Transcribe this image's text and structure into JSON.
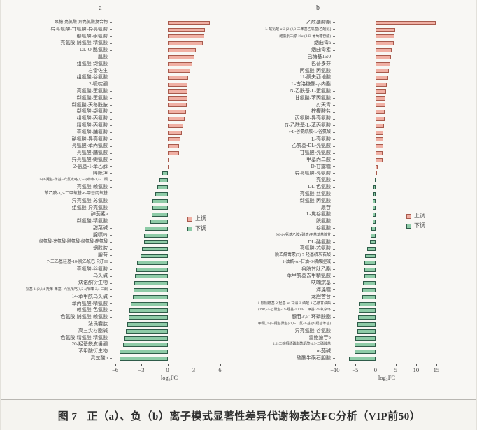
{
  "page": {
    "caption_label": "图 7",
    "caption_title": "正（a）、负（b）离子模式显著性差异代谢物表达FC分析（VIP前50）"
  },
  "legend": {
    "up": "上调",
    "down": "下调"
  },
  "colors": {
    "up_fill": "#f0b0a4",
    "up_border": "#a85a4c",
    "down_fill": "#8ecba7",
    "down_border": "#2f5c49",
    "axis": "#555555"
  },
  "chart_data": [
    {
      "type": "bar",
      "orientation": "horizontal",
      "panel_label": "a",
      "title": "",
      "xlabel": "log₂FC",
      "xlim": [
        -6.6,
        7.0
      ],
      "xticks": [
        -6,
        -3,
        0,
        3,
        6
      ],
      "grid": false,
      "legend": [
        "上调",
        "下调"
      ],
      "legend_position": "right-middle",
      "categories": [
        "果糖-亮氨酸-异亮氨酸复合物",
        "异亮氨酸-甘氨酸-异亮氨酸",
        "缬氨酸-组氨酸",
        "亮氨酸-脯氨酸-精氨酸",
        "DL-O-酪氨酸",
        "肌酸",
        "组氨酸-缬氨酸",
        "右雷佐生",
        "组氨酸-谷氨酸",
        "2-哌啶酮",
        "亮氨酸-蛋氨酸",
        "缬氨酸-蛋氨酸",
        "缬氨酸-天冬酰胺",
        "缬氨酸-缬氨酸",
        "组氨酸-丙氨酸",
        "精氨酸-丙氨酸",
        "亮氨酸-脯氨酸",
        "酪氨酸-异亮氨酸",
        "亮氨酸-苯丙氨酸",
        "亮氨酸-脯氨酸",
        "异亮氨酸-缬氨酸",
        "2-氨基-1-苯乙醇",
        "唑吡坦",
        "3-(4-羟基-苄基)-六氢吡咯(1,2-a)吡嗪-1,4-二酮",
        "亮氨酸-赖氨酸",
        "苯乙胺-3,5-二甲氧基-α-甲基丙氧基",
        "异亮氨酸-苏氨酸",
        "组氨酸-异亮氨酸",
        "醉茄素a",
        "缬氨酸-精氨酸",
        "甜菜碱",
        "腺嘌呤",
        "缬氨酸-亮氨酸-脯氨酸-缬氨酸-酪氨酸",
        "烟酰胺",
        "腺苷",
        "7-三乙基硅基-10-脱乙酰巴卡汀III",
        "亮氨酸-谷氨酸",
        "乌头碱",
        "炔诺酮衍生物",
        "氨基-1-(2,3,4-羟苯-苯基)-六氢吡咯(1,2-a)吡嗪-2,4-二酮",
        "14-苯甲酰乌头碱",
        "苯丙氨酸-精氨酸",
        "赖氨酸-色氨酸",
        "色氨酸-脯氨酸-赖氨酸",
        "法氏囊肽",
        "高三尖杉酯碱",
        "色氨酸-精氨酸-精氨酸",
        "20-羟基蜕皮甾酮",
        "苯甲酸衍生物",
        "灵芝酸h"
      ],
      "values": [
        4.8,
        4.25,
        4.2,
        4.0,
        3.2,
        3.1,
        2.8,
        2.6,
        2.35,
        2.3,
        2.3,
        2.25,
        2.2,
        2.1,
        1.95,
        1.8,
        1.6,
        1.5,
        1.35,
        1.3,
        0.15,
        0.1,
        -0.6,
        -0.95,
        -1.2,
        -1.4,
        -1.7,
        -1.75,
        -1.8,
        -2.0,
        -2.6,
        -2.65,
        -2.7,
        -2.9,
        -3.1,
        -3.5,
        -3.6,
        -3.7,
        -3.8,
        -3.9,
        -4.0,
        -4.2,
        -4.35,
        -4.45,
        -4.6,
        -4.75,
        -4.9,
        -5.1,
        -5.45,
        -5.5
      ]
    },
    {
      "type": "bar",
      "orientation": "horizontal",
      "panel_label": "b",
      "title": "",
      "xlabel": "log₂FC",
      "xlim": [
        -10.5,
        16.0
      ],
      "xticks": [
        -10,
        -5,
        0,
        5,
        10,
        15
      ],
      "grid": false,
      "legend": [
        "上调",
        "下调"
      ],
      "legend_position": "right-middle",
      "categories": [
        "乙酰磷酸酯",
        "L-酪氨酸-α-2-[2-(2,3-二苯基乙氧基)乙酰氨]",
        "雌激素三醇-16α-(β-D-葡萄糖苷酸)",
        "烟曲霉a",
        "烟曲霉素",
        "己糖基16:0",
        "巴普多芬",
        "丙氨酸-丙氨酸",
        "11-酮夫西地酸",
        "L-古洛糖酸-γ-内酯",
        "N-乙酰基-L-蛋氨酸",
        "甘氨酸-苯丙氨酸",
        "刃天青",
        "柠檬酸盐",
        "丙氨酸-异亮氨酸",
        "N-乙酰基-L-苯丙氨酸",
        "γ-L-谷氨酰胺-L-谷氨酸",
        "L-亮氨酸",
        "乙酰基-DL-亮氨酸",
        "甘氨酸-亮氨酸",
        "甲基丙二酸",
        "D-甘露糖",
        "异亮氨酸-亮氨酸",
        "亮氨酸",
        "DL-色氨酸",
        "亮氨酸-丝氨酸",
        "缬氨酸-丙氨酸",
        "尿苷",
        "L-焦谷氨酸",
        "胱氨酸",
        "谷氨酸",
        "N6-4-(氨基乙胺)(磺基)甲基苯基腺苷",
        "DL-酪氨酸",
        "亮氨酸-苏氨酸",
        "脱乙酰毒素(7)-7-羟基磷灰石酸",
        "1-油酰-sn-甘油-3-磷酸胆碱",
        "谷胱甘肽乙酯",
        "苯甲酰基去甲精氨酸",
        "呋喃烷基",
        "海藻糖",
        "龙胆苦苷",
        "1-棕榈酰基-2-羟基-sn-甘油-3-磷酸-1-乙酰甘油酯",
        "(19R)-5-乙酰基-19-羟基-10,14-二甲基-20-氧杂环",
        "腺苷3',5'-环磷酸酯",
        "甲酮,[1-(5-羟基癸基)-1,6-二氢-3-基](4-羟基苯基)",
        "异亮氨酸-谷氨酸",
        "雷鲍迪苷b",
        "1,2-二棕榈酰磷脂酰肌醇-4,5-二磷酸盐",
        "α-茄碱",
        "硫酸牛磺石胆酸"
      ],
      "values": [
        14.8,
        4.8,
        4.65,
        4.5,
        3.9,
        3.8,
        3.7,
        3.3,
        3.05,
        2.7,
        2.6,
        2.5,
        2.4,
        2.3,
        2.2,
        2.1,
        2.0,
        1.9,
        1.85,
        1.8,
        1.7,
        0.6,
        0.2,
        -0.2,
        -0.5,
        -0.55,
        -0.6,
        -0.65,
        -0.7,
        -0.75,
        -1.1,
        -1.2,
        -1.4,
        -2.0,
        -2.5,
        -2.7,
        -2.7,
        -2.8,
        -3.1,
        -3.2,
        -3.3,
        -3.9,
        -4.1,
        -4.3,
        -4.4,
        -4.5,
        -4.9,
        -5.1,
        -5.2,
        -6.6
      ]
    }
  ]
}
